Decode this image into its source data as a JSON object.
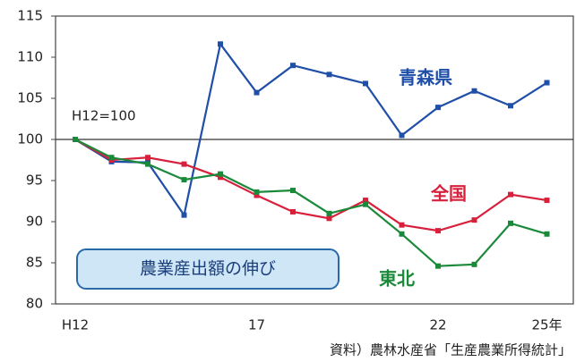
{
  "chart_data": {
    "type": "line",
    "note": "H12=100",
    "box_label": "農業産出額の伸び",
    "source": "資料）農林水産省「生産農業所得統計」",
    "categories": [
      "H12",
      null,
      null,
      null,
      null,
      "17",
      null,
      null,
      null,
      null,
      "22",
      null,
      null,
      "25年"
    ],
    "series": [
      {
        "name": "青森県",
        "color": "#1f4fa8",
        "values": [
          100,
          97.3,
          97.2,
          90.8,
          111.6,
          105.7,
          109,
          107.9,
          106.8,
          100.5,
          103.9,
          105.9,
          104.1,
          106.9
        ]
      },
      {
        "name": "全国",
        "color": "#d6203c",
        "values": [
          100,
          97.5,
          97.8,
          97.0,
          95.4,
          93.2,
          91.2,
          90.4,
          92.6,
          89.6,
          88.9,
          90.2,
          93.3,
          92.6
        ]
      },
      {
        "name": "東北",
        "color": "#1a8a3a",
        "values": [
          100,
          97.8,
          97.0,
          95.1,
          95.8,
          93.6,
          93.8,
          91.0,
          92.1,
          88.5,
          84.6,
          84.8,
          89.8,
          88.5
        ]
      }
    ],
    "ylim": [
      80,
      115
    ],
    "yticks": [
      80,
      85,
      90,
      95,
      100,
      105,
      110,
      115
    ],
    "reference_line": 100
  }
}
